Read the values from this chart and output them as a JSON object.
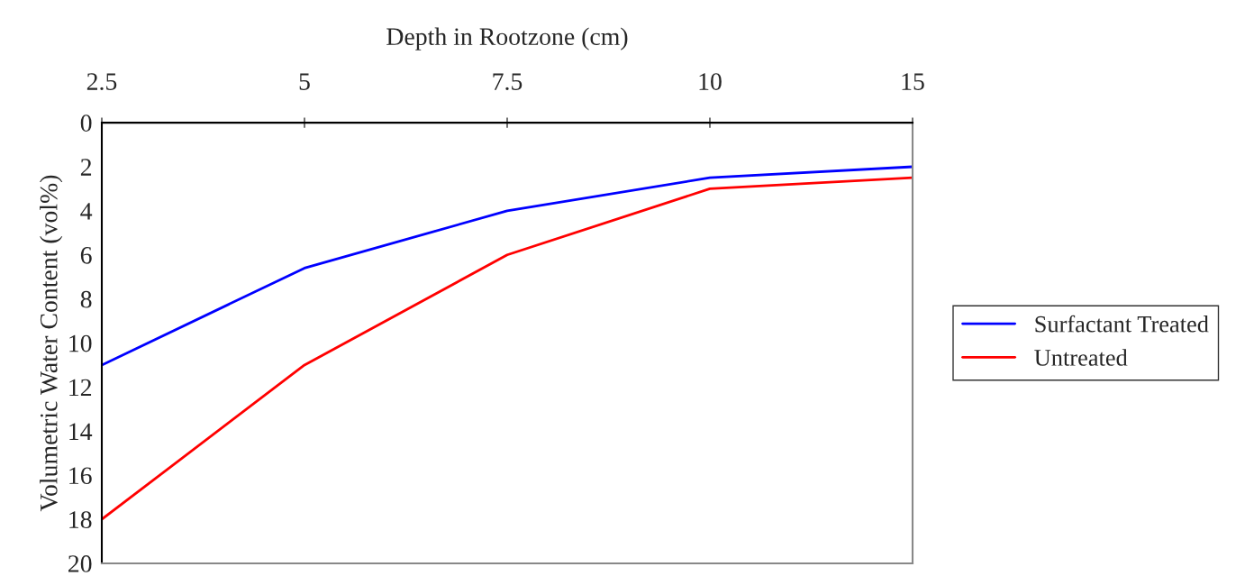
{
  "chart_data": {
    "type": "line",
    "xlabel": "Depth in Rootzone (cm)",
    "ylabel": "Volumetric Water Content (vol%)",
    "categories": [
      "2.5",
      "5",
      "7.5",
      "10",
      "15"
    ],
    "series": [
      {
        "name": "Surfactant Treated",
        "color": "#0000ff",
        "values": [
          11,
          6.6,
          4.0,
          2.5,
          2.0
        ]
      },
      {
        "name": "Untreated",
        "color": "#ff0000",
        "values": [
          18,
          11,
          6.0,
          3.0,
          2.5
        ]
      }
    ],
    "ylim": [
      20,
      0
    ],
    "yticks": [
      0,
      2,
      4,
      6,
      8,
      10,
      12,
      14,
      16,
      18,
      20
    ],
    "grid": false,
    "legend": "right",
    "marker": "none",
    "line_style": "solid"
  }
}
